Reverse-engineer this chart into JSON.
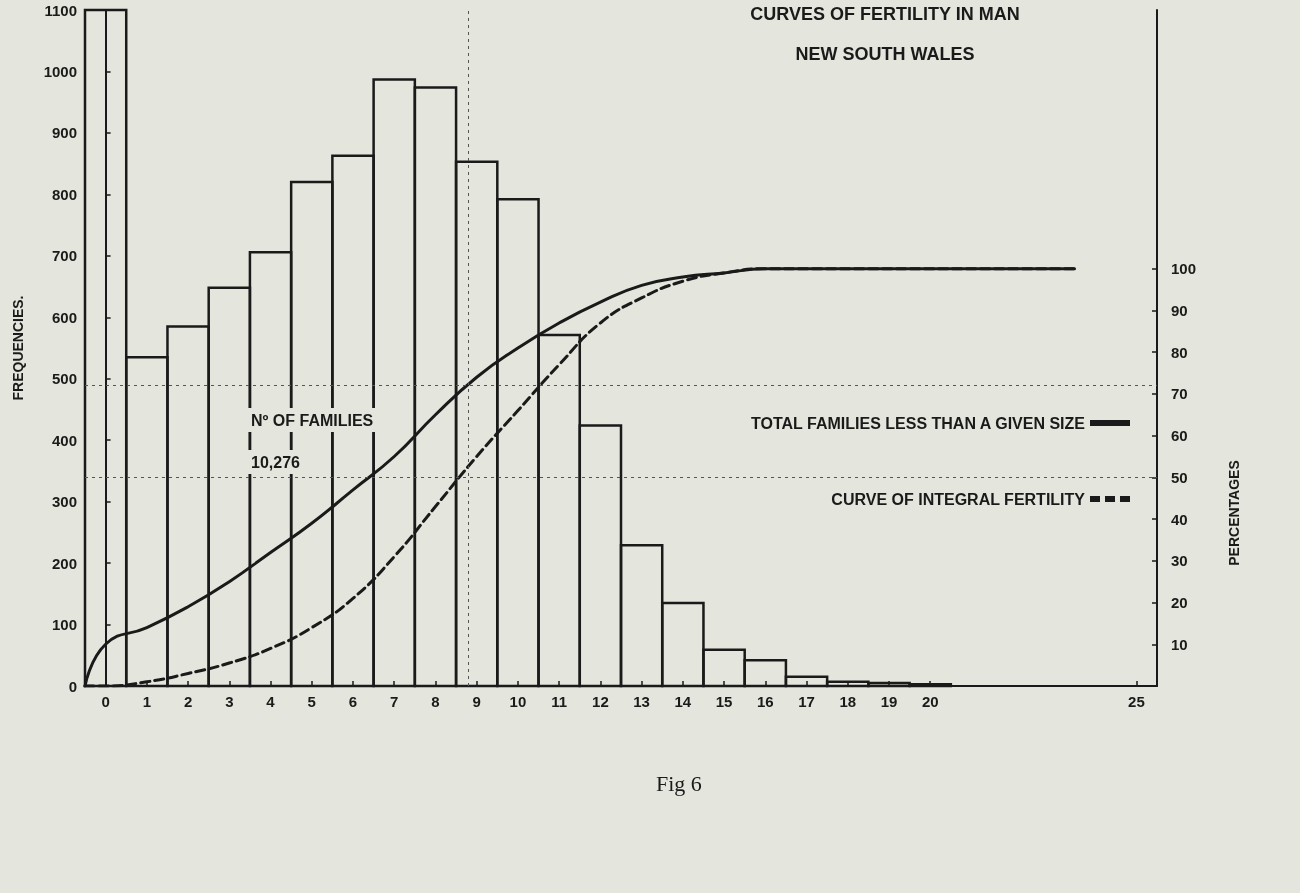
{
  "chart_data": {
    "type": "histogram",
    "title": "CURVES OF FERTILITY IN MAN",
    "subtitle": "NEW SOUTH WALES",
    "ylabel": "FREQUENCIES.",
    "y2label": "PERCENTAGES",
    "annotations": [
      "Nº OF FAMILIES",
      "10,276",
      "Fig 6"
    ],
    "xlim": [
      -0.5,
      25.5
    ],
    "xticks": [
      0,
      1,
      2,
      3,
      4,
      5,
      6,
      7,
      8,
      9,
      10,
      11,
      12,
      13,
      14,
      15,
      16,
      17,
      18,
      19,
      20,
      25
    ],
    "ylim": [
      0,
      1100
    ],
    "yticks": [
      0,
      100,
      200,
      300,
      400,
      500,
      600,
      700,
      800,
      900,
      1000,
      1100
    ],
    "y2lim": [
      0,
      162
    ],
    "y2ticks": [
      10,
      20,
      30,
      40,
      50,
      60,
      70,
      80,
      90,
      100
    ],
    "grid": false,
    "legend": "right",
    "marker": "none",
    "series": [
      {
        "type": "histogram",
        "color": "#1a1a1a",
        "bins": [
          -0.5,
          0.5,
          1.5,
          2.5,
          3.5,
          4.5,
          5.5,
          6.5,
          7.5,
          8.5,
          9.5,
          10.5,
          11.5,
          12.5,
          13.5,
          14.5,
          15.5,
          16.5,
          17.5,
          18.5,
          19.5,
          20.5
        ],
        "values": [
          1100,
          535,
          585,
          648,
          706,
          820,
          863,
          987,
          974,
          853,
          792,
          571,
          424,
          229,
          135,
          59,
          42,
          15,
          7,
          5,
          3
        ]
      },
      {
        "type": "line",
        "name": "TOTAL FAMILIES LESS THAN A GIVEN SIZE",
        "axis": "y2",
        "color": "#1a1a1a",
        "line_style": "solid",
        "x": [
          -0.5,
          0,
          1,
          2,
          3,
          4,
          5,
          6,
          7,
          8,
          9,
          10,
          11,
          12,
          13,
          14,
          15,
          16,
          17,
          23.5
        ],
        "values": [
          0,
          10,
          14,
          19,
          25,
          32,
          39,
          47,
          55,
          65,
          74,
          81,
          87,
          92,
          96,
          98,
          99,
          100,
          100,
          100
        ]
      },
      {
        "type": "line",
        "name": "CURVE OF INTEGRAL FERTILITY",
        "axis": "y2",
        "color": "#1a1a1a",
        "line_style": "dashed",
        "x": [
          -0.5,
          0,
          1,
          2,
          3,
          4,
          5,
          6,
          7,
          8,
          9,
          10,
          11,
          12,
          13,
          14,
          15,
          16,
          17,
          23.5
        ],
        "values": [
          0,
          0,
          1,
          3,
          5.5,
          9,
          14,
          21,
          31,
          43,
          55,
          66,
          77,
          87,
          93,
          97,
          99,
          100,
          100,
          100
        ]
      }
    ],
    "ref_lines": [
      {
        "axis": "y2",
        "value": 72,
        "color": "#555555",
        "line_style": "dotted"
      },
      {
        "axis": "y2",
        "value": 50,
        "color": "#555555",
        "line_style": "dotted"
      },
      {
        "axis": "x",
        "value": 8.8,
        "color": "#555555",
        "line_style": "dotted"
      }
    ]
  }
}
